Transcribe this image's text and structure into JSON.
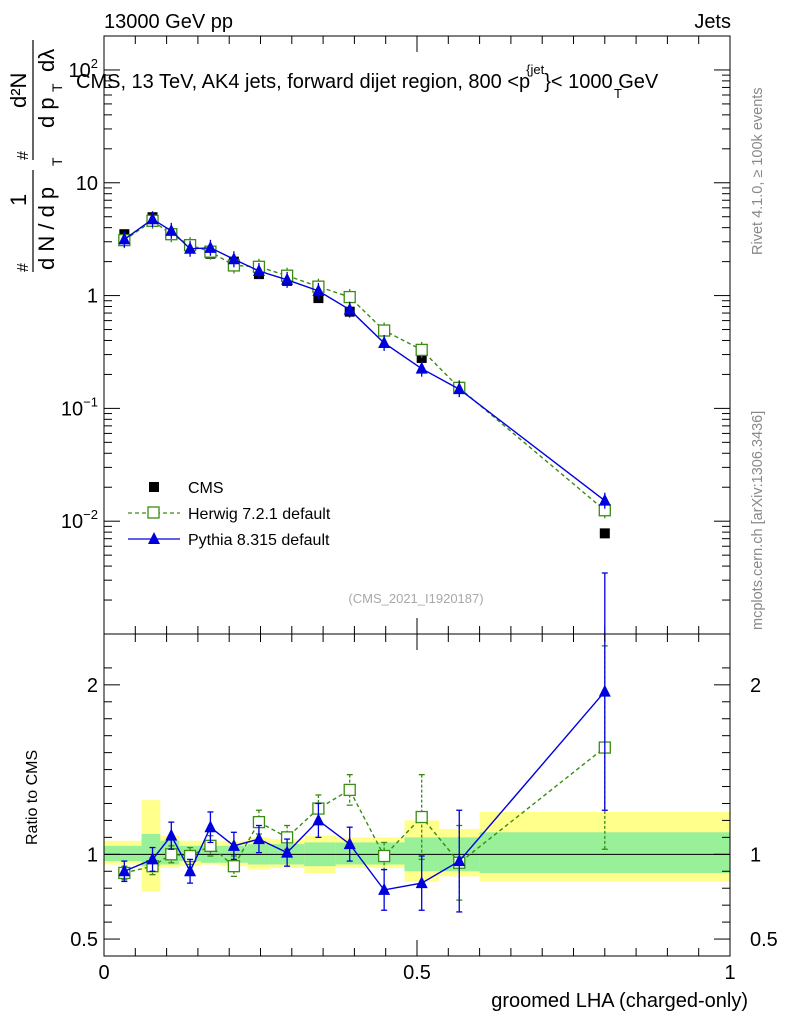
{
  "header": {
    "left": "13000 GeV pp",
    "right": "Jets"
  },
  "side_labels": {
    "rivet": "Rivet 4.1.0, ≥ 100k events",
    "mcplots": "mcplots.cern.ch [arXiv:1306.3436]"
  },
  "chart_data": [
    {
      "panel": "main",
      "type": "line",
      "title": "CMS, 13 TeV, AK4 jets, forward dijet region, 800 <p_T^{jet}< 1000 GeV",
      "title_parts": {
        "pre": "CMS, 13 TeV, AK4 jets, forward dijet region, 800 <",
        "p": "p",
        "sub": "T",
        "sup": "{jet",
        "post": "}< 1000 GeV"
      },
      "ylabel": "1/(dN/dp_T) d²N/(dp_T dλ)",
      "ylabel_parts": {
        "num1": "1",
        "den1": "d N / d p",
        "num2": "d²N",
        "den2": "d p",
        "den2b": "dλ",
        "sub": "T",
        "hash": "#"
      },
      "yscale": "log",
      "ylim": [
        0.001,
        200
      ],
      "xlim": [
        0,
        1
      ],
      "yticks": [
        {
          "value": 100,
          "label": "10",
          "exp": "2"
        },
        {
          "value": 10,
          "label": "10",
          "exp": ""
        },
        {
          "value": 1,
          "label": "1",
          "exp": ""
        },
        {
          "value": 0.1,
          "label": "10",
          "exp": "−1"
        },
        {
          "value": 0.01,
          "label": "10",
          "exp": "−2"
        }
      ],
      "watermark": "(CMS_2021_I1920187)",
      "legend_position": "lower-left",
      "data": {
        "name": "CMS",
        "x": [
          0.0325,
          0.0775,
          0.1075,
          0.1375,
          0.17,
          0.2075,
          0.2475,
          0.2925,
          0.3425,
          0.3925,
          0.4475,
          0.5075,
          0.5675,
          0.8
        ],
        "y": [
          3.5,
          4.95,
          3.55,
          2.85,
          2.35,
          2.0,
          1.55,
          1.35,
          0.95,
          0.72,
          0.5,
          0.28,
          0.155,
          0.0078
        ]
      },
      "series": [
        {
          "name": "Herwig 7.2.1 default",
          "color": "#3a8c12",
          "marker": "open-square",
          "dashed": true,
          "x": [
            0.0325,
            0.0775,
            0.1075,
            0.1375,
            0.17,
            0.2075,
            0.2475,
            0.2925,
            0.3425,
            0.3925,
            0.4475,
            0.5075,
            0.5675,
            0.8
          ],
          "y": [
            3.1,
            4.6,
            3.5,
            2.8,
            2.45,
            1.85,
            1.8,
            1.5,
            1.2,
            0.97,
            0.49,
            0.33,
            0.152,
            0.0125
          ]
        },
        {
          "name": "Pythia 8.315 default",
          "color": "#0000dd",
          "marker": "filled-triangle",
          "dashed": false,
          "x": [
            0.0325,
            0.0775,
            0.1075,
            0.1375,
            0.17,
            0.2075,
            0.2475,
            0.2925,
            0.3425,
            0.3925,
            0.4475,
            0.5075,
            0.5675,
            0.8
          ],
          "y": [
            3.15,
            4.75,
            3.75,
            2.6,
            2.65,
            2.1,
            1.65,
            1.38,
            1.1,
            0.75,
            0.38,
            0.225,
            0.148,
            0.0152
          ]
        }
      ]
    },
    {
      "panel": "ratio",
      "type": "line",
      "ylabel": "Ratio to CMS",
      "xlabel": "groomed LHA (charged-only)",
      "ylim": [
        0.4,
        2.3
      ],
      "xlim": [
        0,
        1
      ],
      "yticks": [
        {
          "value": 2,
          "label": "2"
        },
        {
          "value": 1,
          "label": "1"
        },
        {
          "value": 0.5,
          "label": "0.5"
        }
      ],
      "xticks": [
        {
          "value": 0,
          "label": "0"
        },
        {
          "value": 0.5,
          "label": "0.5"
        },
        {
          "value": 1,
          "label": "1"
        }
      ],
      "uncertainty_bands": {
        "bins": [
          {
            "x0": 0.0,
            "x1": 0.06,
            "stat": [
              0.96,
              1.05
            ],
            "total": [
              0.94,
              1.08
            ]
          },
          {
            "x0": 0.06,
            "x1": 0.09,
            "stat": [
              0.93,
              1.12
            ],
            "total": [
              0.78,
              1.32
            ]
          },
          {
            "x0": 0.09,
            "x1": 0.12,
            "stat": [
              0.94,
              1.08
            ],
            "total": [
              0.92,
              1.11
            ]
          },
          {
            "x0": 0.12,
            "x1": 0.155,
            "stat": [
              0.96,
              1.05
            ],
            "total": [
              0.93,
              1.08
            ]
          },
          {
            "x0": 0.155,
            "x1": 0.185,
            "stat": [
              0.95,
              1.05
            ],
            "total": [
              0.94,
              1.07
            ]
          },
          {
            "x0": 0.185,
            "x1": 0.23,
            "stat": [
              0.95,
              1.05
            ],
            "total": [
              0.93,
              1.08
            ]
          },
          {
            "x0": 0.23,
            "x1": 0.265,
            "stat": [
              0.94,
              1.06
            ],
            "total": [
              0.91,
              1.1
            ]
          },
          {
            "x0": 0.265,
            "x1": 0.32,
            "stat": [
              0.94,
              1.06
            ],
            "total": [
              0.92,
              1.09
            ]
          },
          {
            "x0": 0.32,
            "x1": 0.37,
            "stat": [
              0.93,
              1.07
            ],
            "total": [
              0.89,
              1.11
            ]
          },
          {
            "x0": 0.37,
            "x1": 0.42,
            "stat": [
              0.94,
              1.07
            ],
            "total": [
              0.92,
              1.1
            ]
          },
          {
            "x0": 0.42,
            "x1": 0.48,
            "stat": [
              0.94,
              1.07
            ],
            "total": [
              0.92,
              1.1
            ]
          },
          {
            "x0": 0.48,
            "x1": 0.535,
            "stat": [
              0.9,
              1.1
            ],
            "total": [
              0.84,
              1.2
            ]
          },
          {
            "x0": 0.535,
            "x1": 0.6,
            "stat": [
              0.9,
              1.1
            ],
            "total": [
              0.87,
              1.15
            ]
          },
          {
            "x0": 0.6,
            "x1": 1.0,
            "stat": [
              0.89,
              1.13
            ],
            "total": [
              0.84,
              1.25
            ]
          }
        ]
      },
      "series": [
        {
          "name": "Herwig 7.2.1 default",
          "color": "#3a8c12",
          "marker": "open-square",
          "dashed": true,
          "x": [
            0.0325,
            0.0775,
            0.1075,
            0.1375,
            0.17,
            0.2075,
            0.2475,
            0.2925,
            0.3425,
            0.3925,
            0.4475,
            0.5075,
            0.5675,
            0.8
          ],
          "y": [
            0.89,
            0.93,
            1.0,
            0.99,
            1.05,
            0.93,
            1.19,
            1.1,
            1.27,
            1.38,
            0.99,
            1.22,
            0.95,
            1.63
          ],
          "err": [
            0.04,
            0.05,
            0.05,
            0.05,
            0.06,
            0.06,
            0.07,
            0.07,
            0.08,
            0.09,
            0.08,
            0.25,
            0.22,
            0.6
          ]
        },
        {
          "name": "Pythia 8.315 default",
          "color": "#0000dd",
          "marker": "filled-triangle",
          "dashed": false,
          "x": [
            0.0325,
            0.0775,
            0.1075,
            0.1375,
            0.17,
            0.2075,
            0.2475,
            0.2925,
            0.3425,
            0.3925,
            0.4475,
            0.5075,
            0.5675,
            0.8
          ],
          "y": [
            0.9,
            0.97,
            1.11,
            0.9,
            1.16,
            1.05,
            1.09,
            1.01,
            1.2,
            1.06,
            0.79,
            0.83,
            0.96,
            1.96
          ],
          "err": [
            0.06,
            0.07,
            0.08,
            0.07,
            0.09,
            0.08,
            0.08,
            0.08,
            0.1,
            0.1,
            0.12,
            0.16,
            0.3,
            0.7
          ]
        }
      ]
    }
  ]
}
